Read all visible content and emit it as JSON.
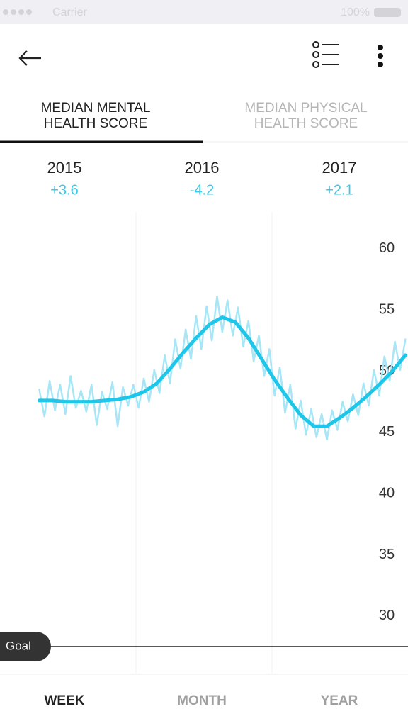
{
  "status_bar": {
    "carrier": "Carrier",
    "battery": "100%"
  },
  "tabs": [
    [
      "MEDIAN MENTAL",
      "HEALTH SCORE"
    ],
    [
      "MEDIAN PHYSICAL",
      "HEALTH SCORE"
    ]
  ],
  "years": [
    {
      "year": "2015",
      "change": "+3.6"
    },
    {
      "year": "2016",
      "change": "-4.2"
    },
    {
      "year": "2017",
      "change": "+2.1"
    }
  ],
  "chart_data": {
    "type": "line",
    "xlim": [
      0,
      156
    ],
    "ylim": [
      25.3,
      63
    ],
    "yticks": [
      30,
      35,
      40,
      45,
      50,
      55,
      60
    ],
    "x_gridlines": [
      52,
      104
    ],
    "goal": {
      "label": "Goal",
      "value": 27.5
    },
    "series": [
      {
        "color": "#a6e6f6",
        "x": [
          15,
          17,
          19,
          21,
          23,
          25,
          27,
          29,
          31,
          33,
          35,
          37,
          39,
          41,
          43,
          45,
          47,
          49,
          51,
          53,
          55,
          57,
          59,
          61,
          63,
          65,
          67,
          69,
          71,
          73,
          75,
          77,
          79,
          81,
          83,
          85,
          87,
          89,
          91,
          93,
          95,
          97,
          99,
          101,
          103,
          105,
          107,
          109,
          111,
          113,
          115,
          117,
          119,
          121,
          123,
          125,
          127,
          129,
          131,
          133,
          135,
          137,
          139,
          141,
          143,
          145,
          147,
          149,
          151,
          153,
          155
        ],
        "values": [
          48.5,
          46.3,
          49.2,
          46.8,
          48.9,
          46.5,
          49.6,
          47.0,
          48.4,
          46.7,
          48.9,
          45.6,
          48.3,
          46.9,
          49.1,
          45.5,
          48.7,
          47.2,
          48.9,
          47.0,
          49.4,
          47.5,
          50.1,
          48.2,
          51.3,
          49.0,
          52.6,
          50.2,
          53.4,
          51.0,
          54.5,
          51.8,
          55.3,
          52.5,
          56.1,
          53.2,
          55.8,
          52.9,
          55.2,
          52.0,
          54.1,
          50.8,
          52.9,
          49.6,
          51.8,
          48.0,
          50.3,
          46.6,
          48.9,
          45.3,
          47.6,
          44.8,
          46.9,
          44.6,
          46.5,
          44.4,
          46.8,
          45.2,
          47.5,
          45.9,
          48.1,
          46.4,
          49.0,
          47.2,
          50.1,
          48.0,
          51.2,
          49.2,
          52.4,
          50.1,
          52.6
        ]
      },
      {
        "color": "#1ec6ea",
        "x": [
          15,
          20,
          25,
          30,
          35,
          40,
          45,
          50,
          55,
          60,
          65,
          70,
          75,
          80,
          85,
          90,
          95,
          100,
          105,
          110,
          115,
          120,
          125,
          130,
          135,
          140,
          145,
          150,
          155
        ],
        "values": [
          47.6,
          47.6,
          47.5,
          47.5,
          47.5,
          47.6,
          47.7,
          47.9,
          48.3,
          49.0,
          50.2,
          51.5,
          52.7,
          53.8,
          54.4,
          54.0,
          52.7,
          51.0,
          49.3,
          47.8,
          46.4,
          45.5,
          45.5,
          46.2,
          47.0,
          47.9,
          48.9,
          50.0,
          51.3
        ]
      }
    ]
  },
  "period_tabs": [
    "WEEK",
    "MONTH",
    "YEAR"
  ]
}
